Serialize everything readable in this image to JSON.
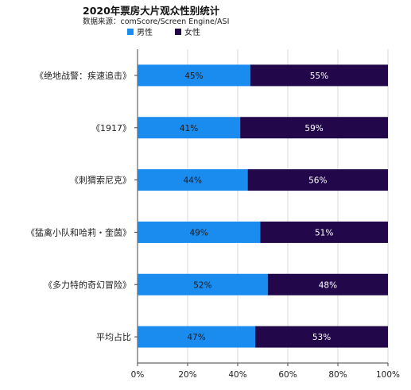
{
  "title": "2020年票房大片观众性别统计",
  "subtitle": "数据来源：comScore/Screen Engine/ASI",
  "legend": [
    {
      "label": "男性",
      "color": "#1a8cf0"
    },
    {
      "label": "女性",
      "color": "#22084a"
    }
  ],
  "chart_data": {
    "type": "bar",
    "orientation": "horizontal",
    "stacked": true,
    "title": "2020年票房大片观众性别统计",
    "subtitle": "数据来源：comScore/Screen Engine/ASI",
    "categories": [
      "《绝地战警：疾速追击》",
      "《1917》",
      "《刺猬索尼克》",
      "《猛禽小队和哈莉・奎茵》",
      "《多力特的奇幻冒险》",
      "平均占比"
    ],
    "series": [
      {
        "name": "男性",
        "values": [
          45,
          41,
          44,
          49,
          52,
          47
        ],
        "labels": [
          "45%",
          "41%",
          "44%",
          "49%",
          "52%",
          "47%"
        ],
        "color": "#1a8cf0"
      },
      {
        "name": "女性",
        "values": [
          55,
          59,
          56,
          51,
          48,
          53
        ],
        "labels": [
          "55%",
          "59%",
          "56%",
          "51%",
          "48%",
          "53%"
        ],
        "color": "#22084a"
      }
    ],
    "xlim": [
      0,
      100
    ],
    "xticks": [
      "0%",
      "20%",
      "40%",
      "60%",
      "80%",
      "100%"
    ],
    "xlabel": "",
    "ylabel": "",
    "grid": true,
    "legend_position": "top-left"
  }
}
